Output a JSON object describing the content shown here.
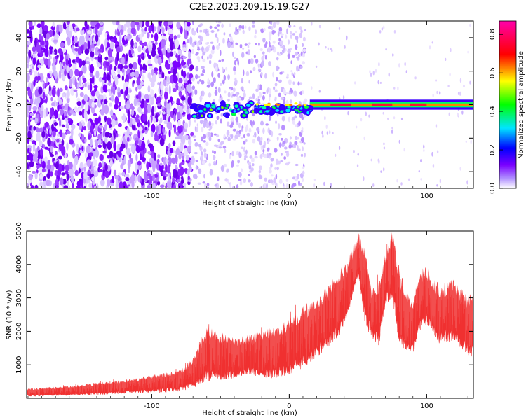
{
  "title": "C2E2.2023.209.15.19.G27",
  "chart_data": [
    {
      "type": "heatmap",
      "xlabel": "Height of straight line (km)",
      "ylabel": "Frequency (Hz)",
      "xlim": [
        -191,
        134
      ],
      "ylim": [
        -50,
        50
      ],
      "xticks": [
        -100,
        0,
        100
      ],
      "xtick_labels": [
        "-100",
        "0",
        "100"
      ],
      "yticks": [
        -40,
        -20,
        0,
        20,
        40
      ],
      "ytick_labels": [
        "-40",
        "-20",
        "0",
        "20",
        "40"
      ],
      "grid": false,
      "colorbar": {
        "label": "Normalized spectral amplitude",
        "range": [
          0.0,
          0.87
        ],
        "ticks": [
          0.0,
          0.2,
          0.4,
          0.6,
          0.8
        ],
        "tick_labels": [
          "0.0",
          "0.2",
          "0.4",
          "0.6",
          "0.8"
        ],
        "colors": [
          "#ffffff",
          "#7a00ff",
          "#0000ff",
          "#00e5ff",
          "#00ff00",
          "#ffff00",
          "#ff0000",
          "#ff00aa"
        ]
      },
      "features": [
        {
          "x_range": [
            -191,
            -70
          ],
          "description_level": 0.35,
          "freq_range": [
            -50,
            50
          ]
        },
        {
          "x_range": [
            -70,
            -25
          ],
          "level": 0.45,
          "freq_center": -2
        },
        {
          "x_range": [
            -25,
            10
          ],
          "level": 0.55,
          "freq_center": 0
        },
        {
          "x_range": [
            10,
            134
          ],
          "level": 0.8,
          "freq_center": 0
        }
      ]
    },
    {
      "type": "line",
      "xlabel": "Height of straight line (km)",
      "ylabel": "SNR (10 * v/v)",
      "xlim": [
        -191,
        134
      ],
      "ylim": [
        0,
        5000
      ],
      "xticks": [
        -100,
        0,
        100
      ],
      "xtick_labels": [
        "-100",
        "0",
        "100"
      ],
      "yticks": [
        1000,
        2000,
        3000,
        4000,
        5000
      ],
      "ytick_labels": [
        "1000",
        "2000",
        "3000",
        "4000",
        "5000"
      ],
      "grid": false,
      "color": "#f03030",
      "series": [
        {
          "x": [
            -191,
            -180,
            -170,
            -160,
            -150,
            -140,
            -130,
            -120,
            -110,
            -100,
            -90,
            -80,
            -70,
            -60,
            -50,
            -40,
            -30,
            -20,
            -10,
            0,
            10,
            20,
            30,
            40,
            45,
            50,
            55,
            60,
            65,
            70,
            75,
            80,
            85,
            90,
            95,
            100,
            105,
            110,
            115,
            120,
            125,
            130,
            134
          ],
          "lower": [
            50,
            60,
            70,
            80,
            90,
            100,
            120,
            140,
            150,
            170,
            180,
            200,
            300,
            500,
            500,
            600,
            700,
            600,
            600,
            700,
            900,
            1200,
            1600,
            2000,
            2800,
            3600,
            2200,
            1800,
            1500,
            2800,
            3000,
            1600,
            1400,
            1300,
            2000,
            2200,
            1800,
            1600,
            1700,
            1600,
            1500,
            1300,
            1200
          ],
          "upper": [
            300,
            330,
            350,
            380,
            420,
            470,
            520,
            560,
            620,
            700,
            760,
            850,
            1200,
            2200,
            2000,
            1800,
            1900,
            2000,
            2200,
            2400,
            2800,
            3000,
            3600,
            4000,
            4400,
            5000,
            4600,
            3300,
            3600,
            4400,
            5000,
            4000,
            3200,
            3000,
            3800,
            4000,
            3600,
            3400,
            3500,
            3600,
            3300,
            3100,
            3200
          ]
        }
      ]
    }
  ]
}
